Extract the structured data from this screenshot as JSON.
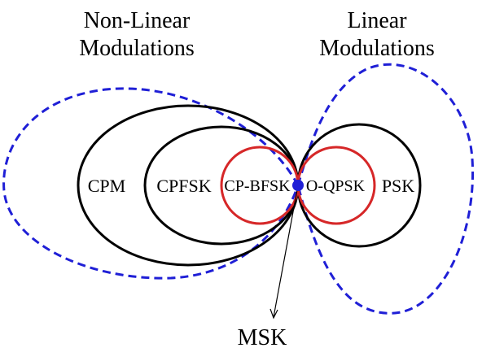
{
  "headings": {
    "left_line1": "Non-Linear",
    "left_line2": "Modulations",
    "right_line1": "Linear",
    "right_line2": "Modulations"
  },
  "labels": {
    "cpm": "CPM",
    "cpfsk": "CPFSK",
    "cpbfsk": "CP-BFSK",
    "oqpsk": "O-QPSK",
    "psk": "PSK",
    "msk": "MSK"
  },
  "colors": {
    "outline": "#000000",
    "highlight": "#d62728",
    "region_boundary": "#1f1fd6",
    "point": "#1f1fd6"
  }
}
